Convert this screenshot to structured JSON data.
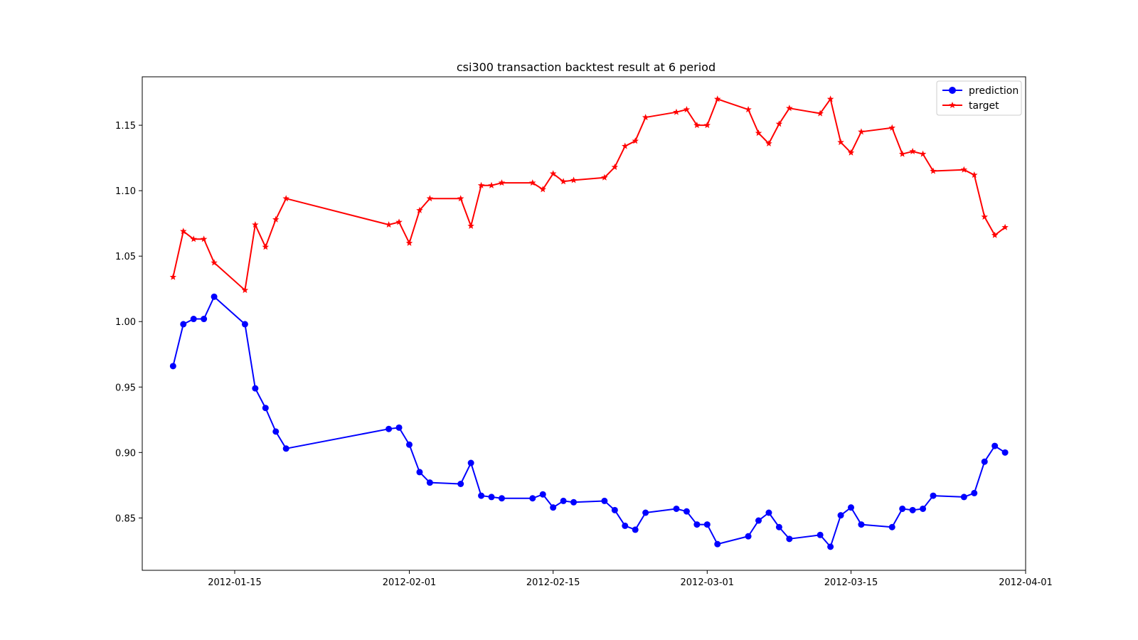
{
  "chart_data": {
    "type": "line",
    "title": "csi300 transaction backtest result at 6 period",
    "xlabel": "",
    "ylabel": "",
    "x_ticks": [
      "2012-01-15",
      "2012-02-01",
      "2012-02-15",
      "2012-03-01",
      "2012-03-15",
      "2012-04-01"
    ],
    "y_ticks": [
      "0.85",
      "0.90",
      "0.95",
      "1.00",
      "1.05",
      "1.10",
      "1.15"
    ],
    "xlim": [
      "2012-01-06",
      "2012-04-01"
    ],
    "ylim": [
      0.81,
      1.187
    ],
    "grid": false,
    "legend_position": "top-right",
    "x": [
      "2012-01-09",
      "2012-01-10",
      "2012-01-11",
      "2012-01-12",
      "2012-01-13",
      "2012-01-16",
      "2012-01-17",
      "2012-01-18",
      "2012-01-19",
      "2012-01-20",
      "2012-01-30",
      "2012-01-31",
      "2012-02-01",
      "2012-02-02",
      "2012-02-03",
      "2012-02-06",
      "2012-02-07",
      "2012-02-08",
      "2012-02-09",
      "2012-02-10",
      "2012-02-13",
      "2012-02-14",
      "2012-02-15",
      "2012-02-16",
      "2012-02-17",
      "2012-02-20",
      "2012-02-21",
      "2012-02-22",
      "2012-02-23",
      "2012-02-24",
      "2012-02-27",
      "2012-02-28",
      "2012-02-29",
      "2012-03-01",
      "2012-03-02",
      "2012-03-05",
      "2012-03-06",
      "2012-03-07",
      "2012-03-08",
      "2012-03-09",
      "2012-03-12",
      "2012-03-13",
      "2012-03-14",
      "2012-03-15",
      "2012-03-16",
      "2012-03-19",
      "2012-03-20",
      "2012-03-21",
      "2012-03-22",
      "2012-03-23",
      "2012-03-26",
      "2012-03-27",
      "2012-03-28",
      "2012-03-29",
      "2012-03-30"
    ],
    "series": [
      {
        "name": "prediction",
        "color": "#0000ff",
        "marker": "circle",
        "values": [
          0.966,
          0.998,
          1.002,
          1.002,
          1.019,
          0.998,
          0.949,
          0.934,
          0.916,
          0.903,
          0.918,
          0.919,
          0.906,
          0.885,
          0.877,
          0.876,
          0.892,
          0.867,
          0.866,
          0.865,
          0.865,
          0.868,
          0.858,
          0.863,
          0.862,
          0.863,
          0.856,
          0.844,
          0.841,
          0.854,
          0.857,
          0.855,
          0.845,
          0.845,
          0.83,
          0.836,
          0.848,
          0.854,
          0.843,
          0.834,
          0.837,
          0.828,
          0.852,
          0.858,
          0.845,
          0.843,
          0.857,
          0.856,
          0.857,
          0.867,
          0.866,
          0.869,
          0.893,
          0.905,
          0.9
        ]
      },
      {
        "name": "target",
        "color": "#ff0000",
        "marker": "star",
        "values": [
          1.034,
          1.069,
          1.063,
          1.063,
          1.045,
          1.024,
          1.074,
          1.057,
          1.078,
          1.094,
          1.074,
          1.076,
          1.06,
          1.085,
          1.094,
          1.094,
          1.073,
          1.104,
          1.104,
          1.106,
          1.106,
          1.101,
          1.113,
          1.107,
          1.108,
          1.11,
          1.118,
          1.134,
          1.138,
          1.156,
          1.16,
          1.162,
          1.15,
          1.15,
          1.17,
          1.162,
          1.144,
          1.136,
          1.151,
          1.163,
          1.159,
          1.17,
          1.137,
          1.129,
          1.145,
          1.148,
          1.128,
          1.13,
          1.128,
          1.115,
          1.116,
          1.112,
          1.08,
          1.066,
          1.072
        ]
      }
    ]
  }
}
